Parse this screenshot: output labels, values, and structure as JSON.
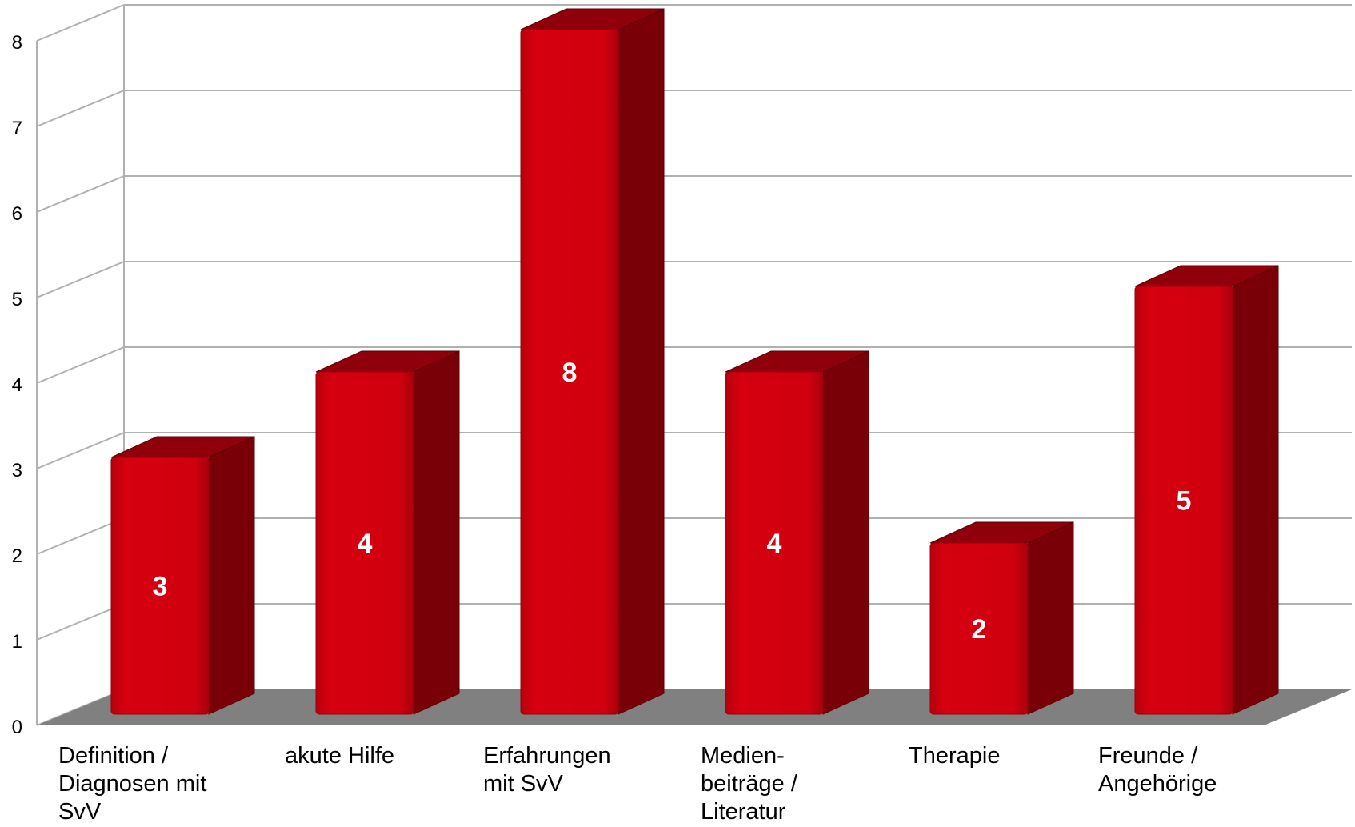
{
  "chart_data": {
    "type": "bar",
    "style": "3d-column",
    "title": "",
    "xlabel": "",
    "ylabel": "",
    "ylim": [
      0,
      8
    ],
    "yticks": [
      "0",
      "1",
      "2",
      "3",
      "4",
      "5",
      "6",
      "7",
      "8"
    ],
    "grid": true,
    "legend": "none",
    "categories": [
      "Definition / Diagnosen mit SvV",
      "akute Hilfe",
      "Erfahrungen mit SvV",
      "Medien- beiträge / Literatur",
      "Therapie",
      "Freunde / Angehörige"
    ],
    "category_lines": [
      "Definition /\nDiagnosen mit\nSvV",
      "akute Hilfe",
      "Erfahrungen\nmit SvV",
      "Medien-\nbeiträge /\nLiteratur",
      "Therapie",
      "Freunde /\nAngehörige"
    ],
    "values": [
      3,
      4,
      8,
      4,
      2,
      5
    ],
    "data_labels": [
      "3",
      "4",
      "8",
      "4",
      "2",
      "5"
    ],
    "colors": {
      "bar_front": "#d0000f",
      "bar_side": "#7a0008",
      "bar_top": "#8f000a",
      "floor": "#808080",
      "grid": "#b0b0b0",
      "data_label": "#ffffff"
    }
  }
}
